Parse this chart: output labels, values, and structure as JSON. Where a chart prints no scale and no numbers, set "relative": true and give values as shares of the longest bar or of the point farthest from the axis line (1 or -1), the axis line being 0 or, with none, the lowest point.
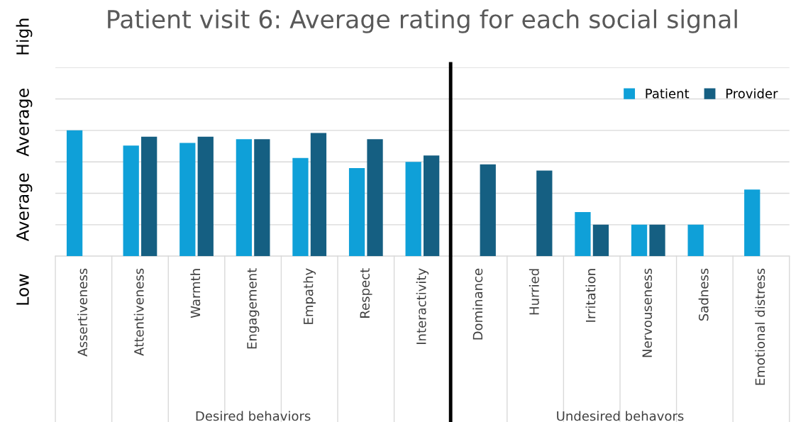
{
  "chart_data": {
    "type": "bar",
    "title": "Patient visit 6: Average rating for each social signal",
    "ylabel": "Low      Average   Average      High",
    "categories": [
      "Assertiveness",
      "Attentiveness",
      "Warmth",
      "Engagement",
      "Empathy",
      "Respect",
      "Interactivity",
      "Dominance",
      "Hurried",
      "Irritation",
      "Nervouseness",
      "Sadness",
      "Emotional distress"
    ],
    "relative": true,
    "series": [
      {
        "name": "Patient",
        "color": "#0fa0d8",
        "values": [
          1.0,
          0.88,
          0.9,
          0.93,
          0.78,
          0.7,
          0.75,
          null,
          null,
          0.35,
          0.25,
          0.25,
          0.53
        ]
      },
      {
        "name": "Provider",
        "color": "#155f82",
        "values": [
          null,
          0.95,
          0.95,
          0.93,
          0.98,
          0.93,
          0.8,
          0.73,
          0.68,
          0.25,
          0.25,
          null,
          null
        ]
      }
    ],
    "grid": "y",
    "legend": "top right",
    "annotations": [
      "Desired behaviors",
      "Undesired behavors"
    ]
  }
}
